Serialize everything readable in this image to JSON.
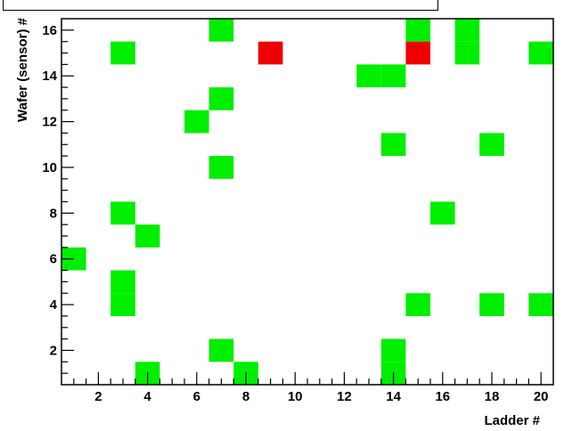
{
  "chart_data": {
    "type": "heatmap",
    "title": "",
    "xlabel": "Ladder #",
    "ylabel": "Wafer (sensor) #",
    "xlim": [
      0.5,
      20.5
    ],
    "ylim": [
      0.5,
      16.5
    ],
    "x_ticks": [
      2,
      4,
      6,
      8,
      10,
      12,
      14,
      16,
      18,
      20
    ],
    "y_ticks": [
      2,
      4,
      6,
      8,
      10,
      12,
      14,
      16
    ],
    "colors": {
      "green": "#00ee00",
      "red": "#ee0000"
    },
    "cells": [
      {
        "x": 7,
        "y": 16,
        "status": "green"
      },
      {
        "x": 15,
        "y": 16,
        "status": "green"
      },
      {
        "x": 17,
        "y": 16,
        "status": "green"
      },
      {
        "x": 3,
        "y": 15,
        "status": "green"
      },
      {
        "x": 9,
        "y": 15,
        "status": "red"
      },
      {
        "x": 15,
        "y": 15,
        "status": "red"
      },
      {
        "x": 17,
        "y": 15,
        "status": "green"
      },
      {
        "x": 20,
        "y": 15,
        "status": "green"
      },
      {
        "x": 13,
        "y": 14,
        "status": "green"
      },
      {
        "x": 14,
        "y": 14,
        "status": "green"
      },
      {
        "x": 7,
        "y": 13,
        "status": "green"
      },
      {
        "x": 6,
        "y": 12,
        "status": "green"
      },
      {
        "x": 14,
        "y": 11,
        "status": "green"
      },
      {
        "x": 18,
        "y": 11,
        "status": "green"
      },
      {
        "x": 7,
        "y": 10,
        "status": "green"
      },
      {
        "x": 3,
        "y": 8,
        "status": "green"
      },
      {
        "x": 16,
        "y": 8,
        "status": "green"
      },
      {
        "x": 4,
        "y": 7,
        "status": "green"
      },
      {
        "x": 1,
        "y": 6,
        "status": "green"
      },
      {
        "x": 3,
        "y": 5,
        "status": "green"
      },
      {
        "x": 3,
        "y": 4,
        "status": "green"
      },
      {
        "x": 15,
        "y": 4,
        "status": "green"
      },
      {
        "x": 18,
        "y": 4,
        "status": "green"
      },
      {
        "x": 20,
        "y": 4,
        "status": "green"
      },
      {
        "x": 7,
        "y": 2,
        "status": "green"
      },
      {
        "x": 14,
        "y": 2,
        "status": "green"
      },
      {
        "x": 4,
        "y": 1,
        "status": "green"
      },
      {
        "x": 8,
        "y": 1,
        "status": "green"
      },
      {
        "x": 14,
        "y": 1,
        "status": "green"
      }
    ]
  }
}
